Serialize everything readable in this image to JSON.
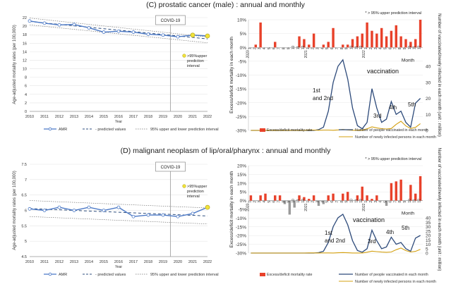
{
  "sections": [
    {
      "title": "(C) prostatic cancer (male) : annual and monthly"
    },
    {
      "title": "(D) malignant neoplasm of lip/oral/pharynx : annual and monthly"
    }
  ],
  "chart_data": [
    {
      "type": "line",
      "ylabel": "Age-adjusted mortality rates (per 100,000)",
      "xlabel": "Year",
      "x": [
        2010,
        2011,
        2012,
        2013,
        2014,
        2015,
        2016,
        2017,
        2018,
        2019,
        2020,
        2021,
        2022
      ],
      "ylim": [
        0,
        22
      ],
      "yticks": [
        0,
        2,
        4,
        6,
        8,
        10,
        12,
        14,
        16,
        18,
        20,
        22
      ],
      "covid_label": "COVID-19",
      "covid_x": 2019.5,
      "highlight_label": ">95%upper prediction interval",
      "series": [
        {
          "name": "AMR",
          "values": [
            21.2,
            20.7,
            20.3,
            20.4,
            19.6,
            18.6,
            18.8,
            18.6,
            18.1,
            17.9,
            17.5,
            17.9,
            17.7
          ]
        },
        {
          "name": "predicted values",
          "values": [
            21.1,
            20.76,
            20.42,
            20.08,
            19.74,
            19.4,
            19.06,
            18.72,
            18.38,
            18.04,
            17.7,
            17.36,
            17.0
          ]
        },
        {
          "name": "95% upper and lower prediction interval",
          "values_upper": [
            21.9,
            21.53,
            21.16,
            20.79,
            20.42,
            20.05,
            19.68,
            19.31,
            18.94,
            18.57,
            18.2,
            17.83,
            17.46
          ],
          "values_lower": [
            20.3,
            19.95,
            19.6,
            19.25,
            18.9,
            18.55,
            18.2,
            17.85,
            17.5,
            17.15,
            16.8,
            16.45,
            16.1
          ]
        }
      ],
      "highlight_points": [
        2021,
        2022
      ]
    },
    {
      "type": "bar",
      "ylabel": "Excess/deficit mortality in each month",
      "y2label": "Number of vaccinated/newly infected in each month  (unit : million)",
      "xlabel": "Month",
      "ylim": [
        -30,
        10
      ],
      "yticks": [
        -30,
        -25,
        -20,
        -15,
        -10,
        -5,
        0,
        5,
        10
      ],
      "y2ticks": [
        0,
        10,
        20,
        30,
        40
      ],
      "star_note": "* > 95% upper prediction interval",
      "month_labels": [
        "1",
        "2",
        "3",
        "4",
        "5",
        "6",
        "7",
        "8",
        "9",
        "10",
        "11",
        "12",
        "1",
        "2",
        "3",
        "4",
        "5",
        "6",
        "7",
        "8",
        "9",
        "10",
        "11",
        "12",
        "1",
        "2",
        "3",
        "4",
        "5",
        "6",
        "7",
        "8",
        "9",
        "10",
        "11",
        "12"
      ],
      "year_labels": [
        "2020",
        "2021",
        "2022"
      ],
      "excess_values": [
        0,
        1,
        9,
        0,
        0,
        2,
        0,
        0,
        0,
        0,
        4,
        3,
        1,
        5,
        0,
        1,
        2,
        7,
        0,
        1,
        1,
        3,
        4,
        5,
        9,
        6,
        5,
        7,
        4,
        6,
        8,
        4,
        3,
        2,
        3,
        10
      ],
      "annotations": [
        "1st and 2nd",
        "3rd",
        "4th",
        "5th",
        "vaccination"
      ],
      "series": [
        {
          "name": "Excess/deficit mortality rate"
        },
        {
          "name": "Number of people vaccinated in each month",
          "values": [
            0,
            0,
            0,
            0,
            0,
            0,
            0,
            0,
            0,
            0,
            0,
            0,
            0,
            0,
            0.5,
            2,
            12,
            30,
            40,
            44,
            32,
            14,
            3,
            1,
            5,
            26,
            14,
            5,
            7,
            18,
            10,
            12,
            5,
            2,
            17,
            20
          ]
        },
        {
          "name": "Number of newly infected persons in each month",
          "values": [
            0,
            0,
            0,
            0,
            0,
            0,
            0,
            0,
            0,
            0,
            0,
            0,
            0.2,
            0.2,
            0.1,
            0.2,
            0.2,
            0.1,
            0.3,
            0.6,
            0.3,
            0.1,
            0.1,
            0.1,
            1.0,
            2.2,
            1.6,
            1.1,
            0.9,
            1.2,
            3.8,
            5.7,
            2.8,
            1.2,
            1.9,
            4.2
          ]
        }
      ]
    },
    {
      "type": "line",
      "ylabel": "Age-adjusted mortality rates (per 100,000)",
      "xlabel": "Year",
      "x": [
        2010,
        2011,
        2012,
        2013,
        2014,
        2015,
        2016,
        2017,
        2018,
        2019,
        2020,
        2021,
        2022
      ],
      "ylim": [
        4.5,
        7.5
      ],
      "yticks": [
        4.5,
        5,
        5.5,
        6,
        6.5,
        7,
        7.5
      ],
      "covid_label": "COVID-19",
      "covid_x": 2019.5,
      "highlight_label": ">95%upper prediction interval",
      "series": [
        {
          "name": "AMR",
          "values": [
            6.05,
            6.0,
            6.1,
            6.0,
            6.1,
            6.0,
            6.1,
            5.8,
            5.85,
            5.85,
            5.8,
            5.9,
            6.1
          ]
        },
        {
          "name": "predicted values",
          "values": [
            6.06,
            6.04,
            6.02,
            6.0,
            5.98,
            5.96,
            5.94,
            5.92,
            5.9,
            5.88,
            5.86,
            5.84,
            5.82
          ]
        },
        {
          "name": "95% upper and lower prediction interval",
          "values_upper": [
            6.32,
            6.3,
            6.28,
            6.26,
            6.24,
            6.22,
            6.2,
            6.18,
            6.16,
            6.14,
            6.12,
            6.1,
            6.08
          ],
          "values_lower": [
            5.8,
            5.78,
            5.76,
            5.74,
            5.72,
            5.7,
            5.68,
            5.66,
            5.64,
            5.62,
            5.6,
            5.58,
            5.56
          ]
        }
      ],
      "highlight_points": [
        2022
      ]
    },
    {
      "type": "bar",
      "ylabel": "Excess/deficit mortality in each month",
      "y2label": "Number of vaccinated/newly infected in each month  (unit : million)",
      "xlabel": "Month",
      "ylim": [
        -30,
        20
      ],
      "yticks": [
        -30,
        -25,
        -20,
        -15,
        -10,
        -5,
        0,
        5,
        10,
        15,
        20
      ],
      "y2ticks": [
        0,
        5,
        10,
        15,
        20,
        25,
        30,
        35,
        40
      ],
      "star_note": "* > 95% upper prediction interval",
      "month_labels": [
        "1",
        "2",
        "3",
        "4",
        "5",
        "6",
        "7",
        "8",
        "9",
        "10",
        "11",
        "12",
        "1",
        "2",
        "3",
        "4",
        "5",
        "6",
        "7",
        "8",
        "9",
        "10",
        "11",
        "12",
        "1",
        "2",
        "3",
        "4",
        "5",
        "6",
        "7",
        "8",
        "9",
        "10",
        "11",
        "12"
      ],
      "year_labels": [
        "2020",
        "2021",
        "2022"
      ],
      "excess_values": [
        3,
        0,
        3,
        4,
        0,
        3,
        3,
        -2,
        -8,
        -4,
        3,
        2,
        1,
        3,
        -3,
        -2,
        3,
        4,
        0,
        4,
        5,
        0,
        3,
        8,
        3,
        1,
        3,
        0,
        -3,
        10,
        11,
        12,
        0,
        9,
        4,
        14
      ],
      "annotations": [
        "1st and 2nd",
        "3rd",
        "4th",
        "5th",
        "vaccination"
      ],
      "series": [
        {
          "name": "Excess/deficit mortality rate"
        },
        {
          "name": "Number of people vaccinated in each month",
          "values": [
            0,
            0,
            0,
            0,
            0,
            0,
            0,
            0,
            0,
            0,
            0,
            0,
            0,
            0,
            0.5,
            2,
            12,
            30,
            40,
            44,
            32,
            14,
            3,
            1,
            5,
            26,
            14,
            5,
            7,
            18,
            10,
            12,
            5,
            2,
            17,
            20
          ]
        },
        {
          "name": "Number of newly infected persons in each month",
          "values": [
            0,
            0,
            0,
            0,
            0,
            0,
            0,
            0,
            0,
            0,
            0,
            0,
            0.2,
            0.2,
            0.1,
            0.2,
            0.2,
            0.1,
            0.3,
            0.6,
            0.3,
            0.1,
            0.1,
            0.1,
            1.0,
            2.2,
            1.6,
            1.1,
            0.9,
            1.2,
            3.8,
            5.7,
            2.8,
            1.2,
            1.9,
            4.2
          ]
        }
      ]
    }
  ]
}
